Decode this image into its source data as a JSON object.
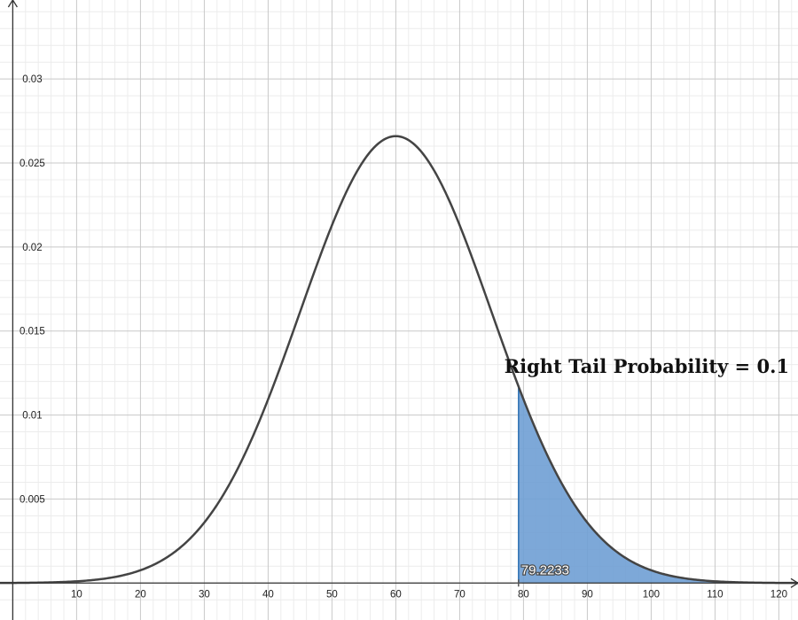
{
  "chart_data": {
    "type": "area",
    "distribution": "normal",
    "mean": 60,
    "sd": 15,
    "xlim": [
      -2,
      123
    ],
    "ylim": [
      -0.0022,
      0.0347
    ],
    "x_ticks": [
      10,
      20,
      30,
      40,
      50,
      60,
      70,
      80,
      90,
      100,
      110,
      120
    ],
    "y_ticks": [
      0.005,
      0.01,
      0.015,
      0.02,
      0.025,
      0.03
    ],
    "x_tick_labels": [
      "10",
      "20",
      "30",
      "40",
      "50",
      "60",
      "70",
      "80",
      "90",
      "100",
      "110",
      "120"
    ],
    "y_tick_labels": [
      "0.005",
      "0.01",
      "0.015",
      "0.02",
      "0.025",
      "0.03"
    ],
    "grid": true,
    "shaded_region": {
      "from": 79.2233,
      "to": 123,
      "side": "right"
    },
    "cutoff_label": "79.2233",
    "annotation": "Right Tail Probability = 0.1",
    "colors": {
      "curve": "#444444",
      "shade": "#6f9fd4",
      "shade_edge": "#2d70b3",
      "grid_major": "#c8c8c8",
      "grid_minor": "#ececec",
      "axis": "#333333"
    }
  }
}
